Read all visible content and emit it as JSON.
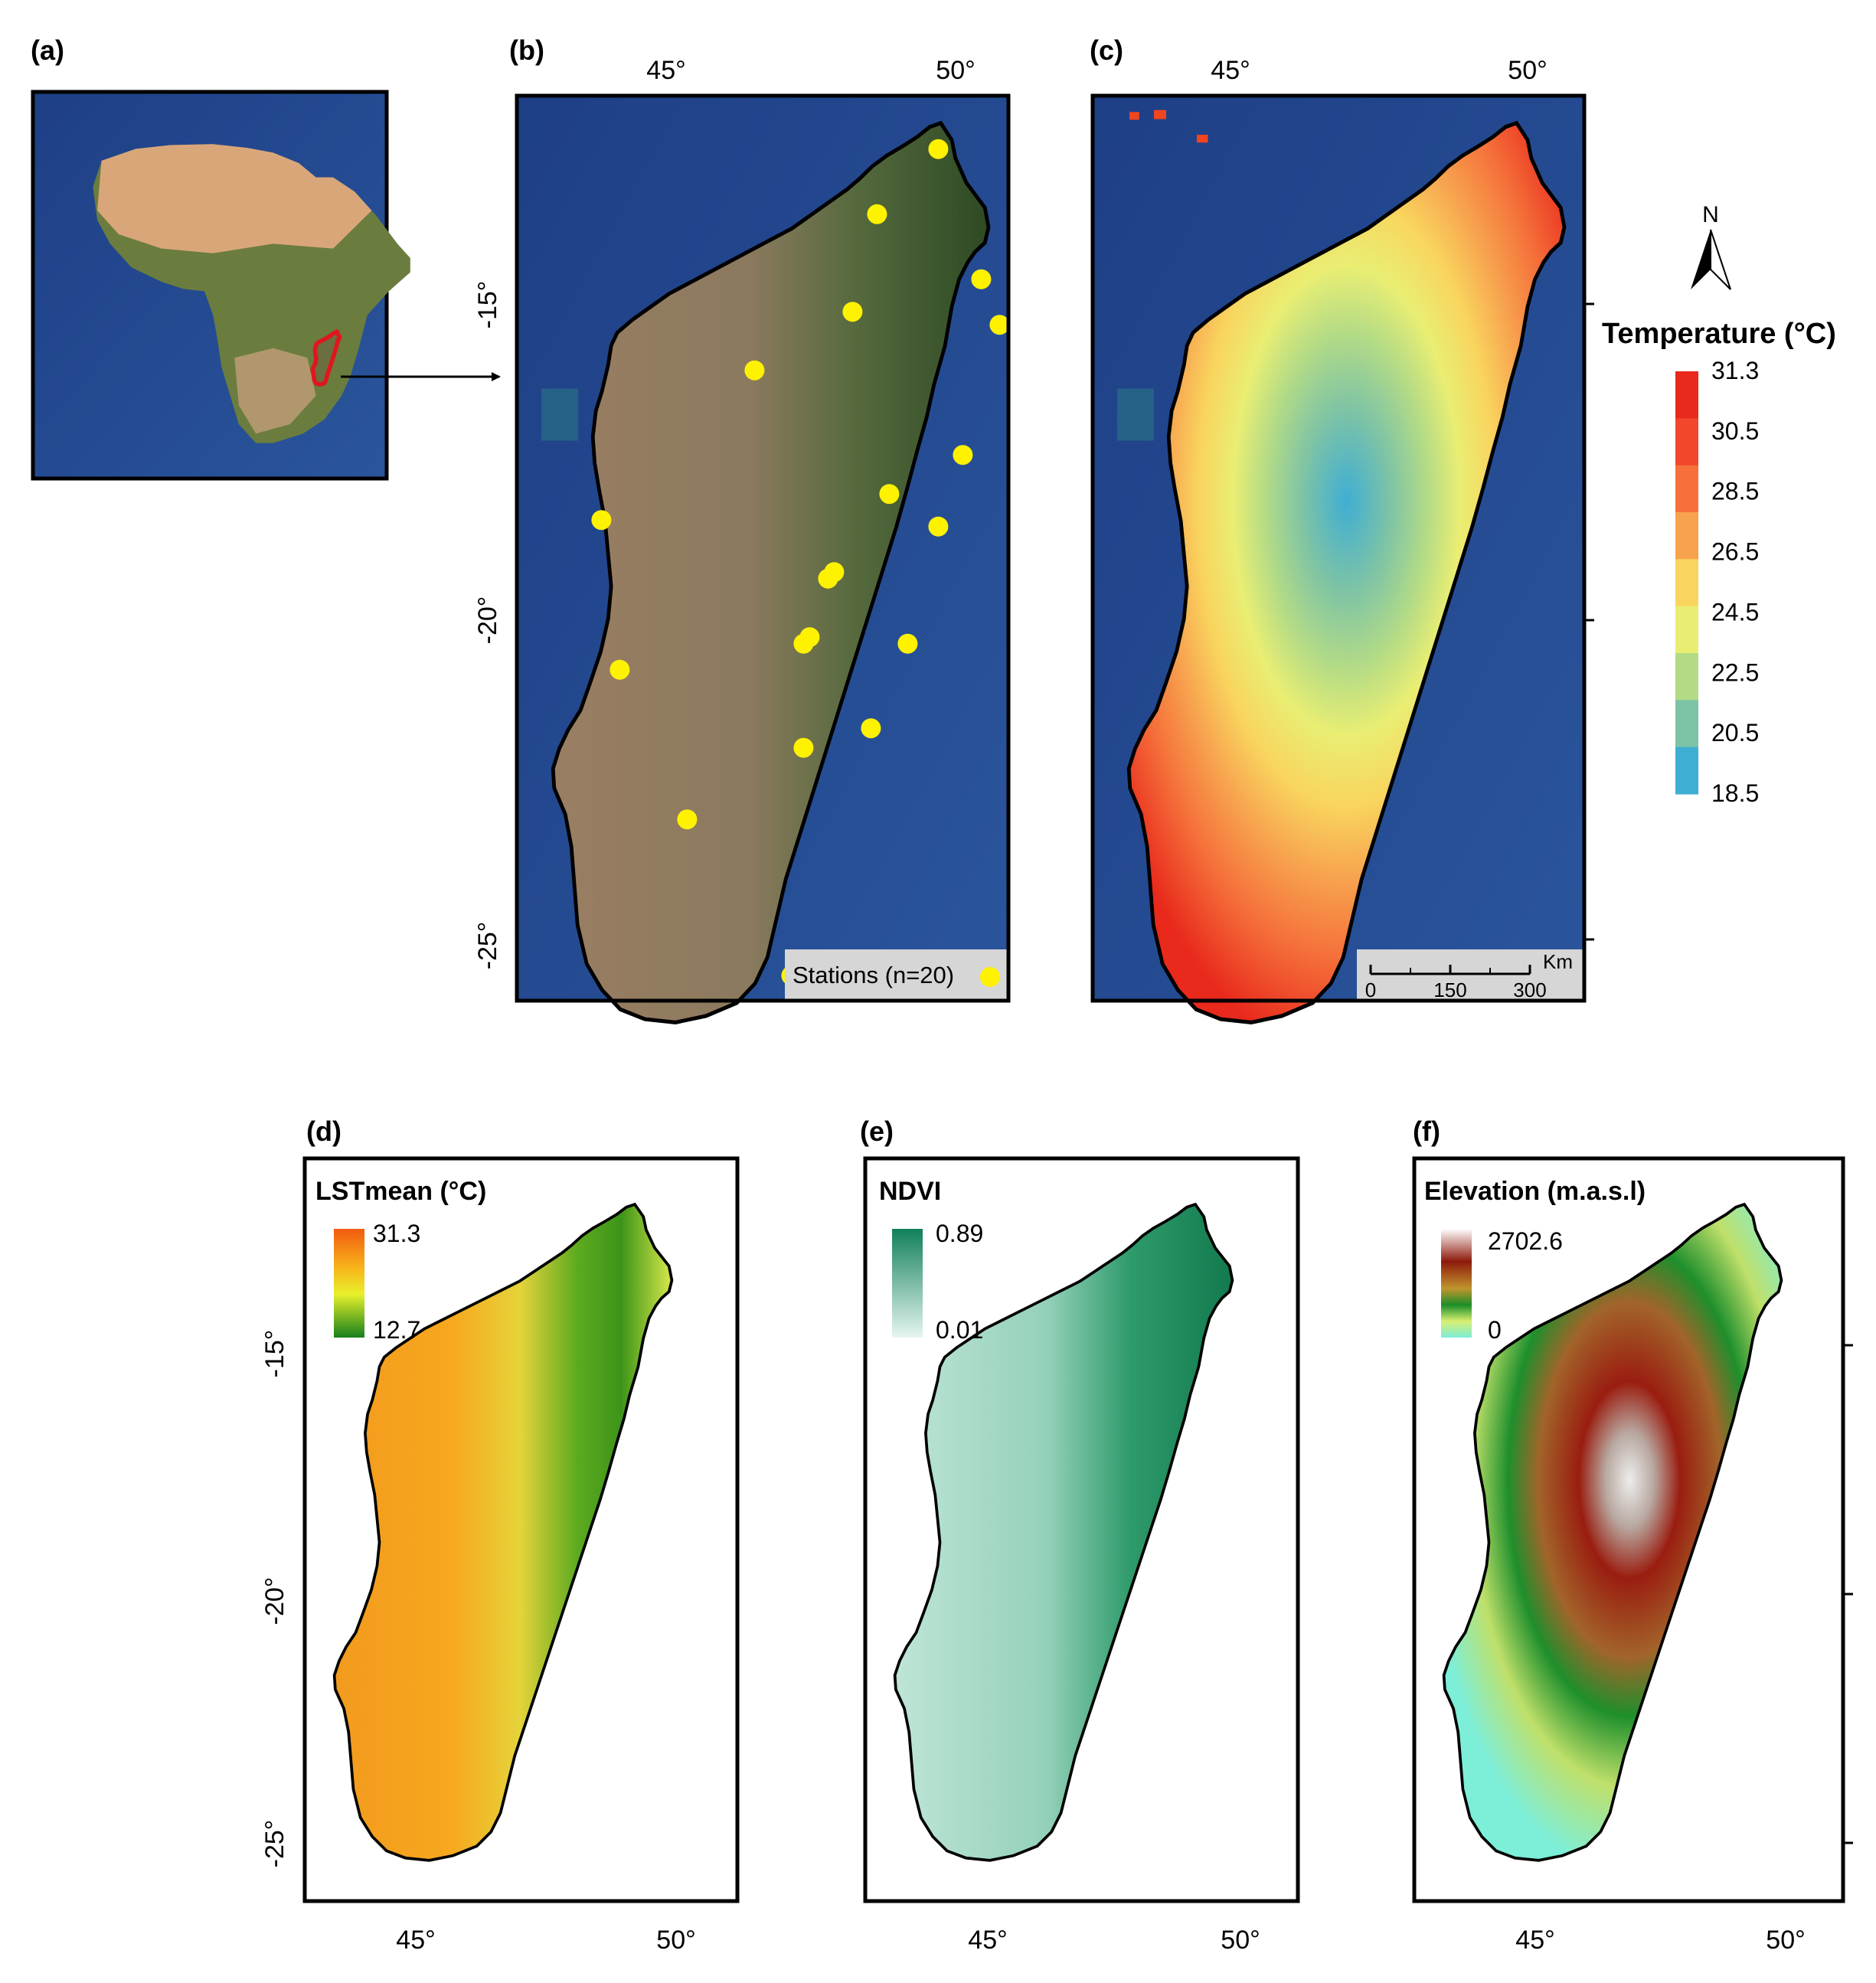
{
  "panels": {
    "a": {
      "label": "(a)"
    },
    "b": {
      "label": "(b)",
      "lon_ticks": [
        "45°",
        "50°"
      ],
      "lat_ticks": [
        "-15°",
        "-20°",
        "-25°"
      ],
      "stations_legend": "Stations (n=20)",
      "station_color": "#FFF200",
      "stations": [
        [
          49.3,
          -12.3
        ],
        [
          48.3,
          -13.3
        ],
        [
          50.0,
          -14.3
        ],
        [
          47.9,
          -14.8
        ],
        [
          50.3,
          -15.0
        ],
        [
          46.3,
          -15.7
        ],
        [
          49.7,
          -17.0
        ],
        [
          48.5,
          -17.6
        ],
        [
          43.8,
          -18.0
        ],
        [
          49.3,
          -18.1
        ],
        [
          47.6,
          -18.8
        ],
        [
          47.5,
          -18.9
        ],
        [
          47.2,
          -19.8
        ],
        [
          47.1,
          -19.9
        ],
        [
          48.8,
          -19.9
        ],
        [
          44.1,
          -20.3
        ],
        [
          48.2,
          -21.2
        ],
        [
          47.1,
          -21.5
        ],
        [
          45.2,
          -22.6
        ],
        [
          46.9,
          -25.0
        ]
      ]
    },
    "c": {
      "label": "(c)",
      "lon_ticks": [
        "45°",
        "50°"
      ],
      "scalebar_unit": "Km",
      "scalebar_ticks": [
        "0",
        "150",
        "300"
      ]
    },
    "d": {
      "label": "(d)",
      "title": "LSTmean (°C)",
      "max": "31.3",
      "min": "12.7",
      "lon_ticks": [
        "45°",
        "50°"
      ],
      "lat_ticks": [
        "-15°",
        "-20°",
        "-25°"
      ]
    },
    "e": {
      "label": "(e)",
      "title": "NDVI",
      "max": "0.89",
      "min": "0.01",
      "lon_ticks": [
        "45°",
        "50°"
      ]
    },
    "f": {
      "label": "(f)",
      "title": "Elevation (m.a.s.l)",
      "max": "2702.6",
      "min": "0",
      "lon_ticks": [
        "45°",
        "50°"
      ]
    }
  },
  "temperature_legend": {
    "north_label": "N",
    "title": "Temperature (°C)",
    "ticks": [
      "31.3",
      "30.5",
      "28.5",
      "26.5",
      "24.5",
      "22.5",
      "20.5",
      "18.5"
    ],
    "colors": [
      "#E8291C",
      "#F2472A",
      "#F5703A",
      "#F7A24E",
      "#F9D45E",
      "#E9EE73",
      "#B3DB86",
      "#7DC3A6",
      "#3FAED3"
    ]
  }
}
